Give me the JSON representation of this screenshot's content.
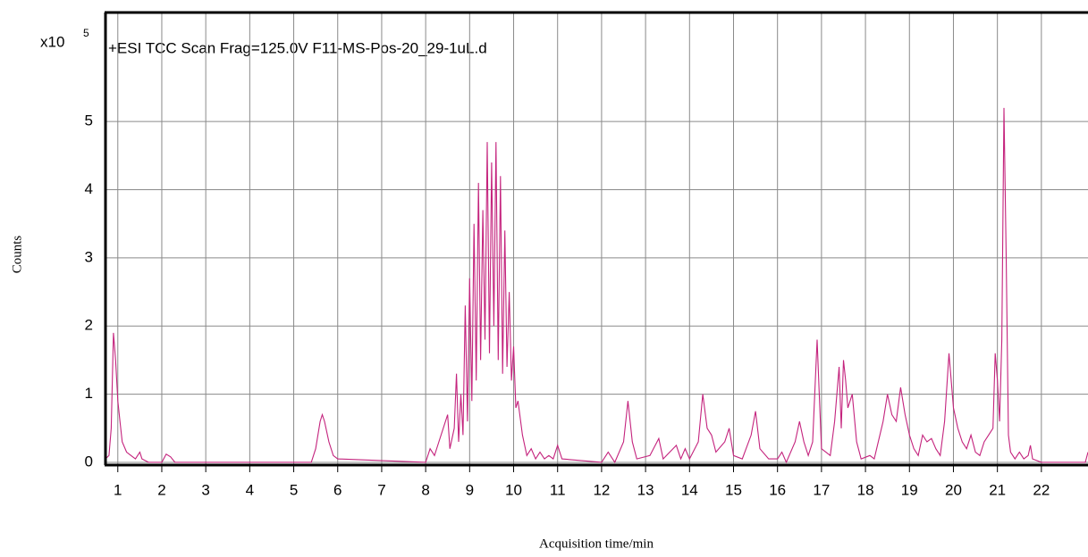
{
  "chart_data": {
    "type": "line",
    "title": "+ESI TCC Scan Frag=125.0V F11-MS-Pos-20_29-1uL.d",
    "y_scale_label": "x10",
    "y_scale_exponent": "5",
    "ylabel": "Counts",
    "xlabel": "Acquisition time/min",
    "color": "#c4237d",
    "grid": true,
    "xlim": [
      0.72,
      23.06
    ],
    "ylim": [
      -0.04,
      6.6
    ],
    "xticks": [
      1,
      2,
      3,
      4,
      5,
      6,
      7,
      8,
      9,
      10,
      11,
      12,
      13,
      14,
      15,
      16,
      17,
      18,
      19,
      20,
      21,
      22
    ],
    "yticks": [
      0,
      1,
      2,
      3,
      4,
      5
    ],
    "x": [
      0.72,
      0.8,
      0.85,
      0.9,
      0.95,
      1.0,
      1.05,
      1.1,
      1.2,
      1.3,
      1.4,
      1.5,
      1.55,
      1.7,
      2.0,
      2.1,
      2.2,
      2.3,
      5.4,
      5.5,
      5.6,
      5.65,
      5.7,
      5.8,
      5.9,
      6.0,
      8.0,
      8.1,
      8.2,
      8.3,
      8.4,
      8.5,
      8.55,
      8.65,
      8.7,
      8.75,
      8.8,
      8.85,
      8.9,
      8.95,
      9.0,
      9.05,
      9.1,
      9.15,
      9.2,
      9.25,
      9.3,
      9.35,
      9.4,
      9.45,
      9.5,
      9.55,
      9.6,
      9.65,
      9.7,
      9.75,
      9.8,
      9.85,
      9.9,
      9.95,
      10.0,
      10.05,
      10.1,
      10.2,
      10.3,
      10.4,
      10.5,
      10.6,
      10.7,
      10.8,
      10.9,
      11.0,
      11.1,
      12.0,
      12.15,
      12.3,
      12.5,
      12.6,
      12.7,
      12.8,
      13.1,
      13.3,
      13.4,
      13.7,
      13.8,
      13.9,
      14.0,
      14.2,
      14.3,
      14.4,
      14.5,
      14.6,
      14.8,
      14.9,
      15.0,
      15.2,
      15.4,
      15.5,
      15.6,
      15.8,
      16.0,
      16.1,
      16.2,
      16.4,
      16.5,
      16.6,
      16.7,
      16.8,
      16.9,
      16.95,
      17.0,
      17.2,
      17.3,
      17.4,
      17.45,
      17.5,
      17.55,
      17.6,
      17.7,
      17.8,
      17.9,
      18.1,
      18.2,
      18.4,
      18.5,
      18.6,
      18.7,
      18.8,
      18.9,
      19.0,
      19.1,
      19.2,
      19.3,
      19.4,
      19.5,
      19.6,
      19.7,
      19.8,
      19.9,
      20.0,
      20.1,
      20.2,
      20.3,
      20.4,
      20.5,
      20.6,
      20.7,
      20.8,
      20.9,
      20.95,
      21.0,
      21.05,
      21.1,
      21.15,
      21.2,
      21.25,
      21.3,
      21.4,
      21.5,
      21.6,
      21.7,
      21.75,
      21.8,
      22.0,
      23.0,
      23.06
    ],
    "values": [
      0.05,
      0.1,
      0.5,
      1.9,
      1.5,
      0.9,
      0.6,
      0.3,
      0.15,
      0.1,
      0.05,
      0.15,
      0.05,
      0.0,
      0.0,
      0.12,
      0.08,
      0.0,
      0.0,
      0.2,
      0.6,
      0.7,
      0.6,
      0.3,
      0.1,
      0.05,
      0.0,
      0.2,
      0.1,
      0.3,
      0.5,
      0.7,
      0.2,
      0.5,
      1.3,
      0.3,
      1.0,
      0.4,
      2.3,
      0.6,
      2.7,
      0.9,
      3.5,
      1.2,
      4.1,
      1.5,
      3.7,
      1.8,
      4.7,
      1.6,
      4.4,
      2.0,
      4.7,
      1.5,
      4.2,
      1.3,
      3.4,
      1.4,
      2.5,
      1.2,
      1.7,
      0.8,
      0.9,
      0.4,
      0.1,
      0.2,
      0.05,
      0.15,
      0.05,
      0.1,
      0.05,
      0.25,
      0.05,
      0.0,
      0.15,
      0.0,
      0.3,
      0.9,
      0.3,
      0.05,
      0.1,
      0.35,
      0.05,
      0.25,
      0.05,
      0.2,
      0.05,
      0.3,
      1.0,
      0.5,
      0.4,
      0.15,
      0.3,
      0.5,
      0.1,
      0.05,
      0.4,
      0.75,
      0.2,
      0.05,
      0.05,
      0.15,
      0.0,
      0.3,
      0.6,
      0.3,
      0.1,
      0.3,
      1.8,
      1.0,
      0.2,
      0.1,
      0.6,
      1.4,
      0.5,
      1.5,
      1.2,
      0.8,
      1.0,
      0.3,
      0.05,
      0.1,
      0.05,
      0.6,
      1.0,
      0.7,
      0.6,
      1.1,
      0.7,
      0.4,
      0.2,
      0.1,
      0.4,
      0.3,
      0.35,
      0.2,
      0.1,
      0.6,
      1.6,
      0.8,
      0.5,
      0.3,
      0.2,
      0.4,
      0.15,
      0.1,
      0.3,
      0.4,
      0.5,
      1.6,
      1.2,
      0.6,
      1.8,
      5.2,
      3.0,
      0.4,
      0.15,
      0.05,
      0.15,
      0.05,
      0.1,
      0.25,
      0.05,
      0.0,
      0.0,
      0.15
    ]
  }
}
